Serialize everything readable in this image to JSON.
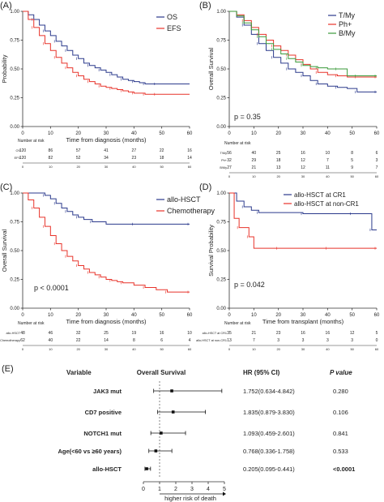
{
  "chart_data": [
    {
      "type": "line",
      "panel_label": "(A)",
      "xlabel": "Time from diagnosis (months)",
      "ylabel": "Probability",
      "xlim": [
        0,
        60
      ],
      "ylim": [
        0,
        1
      ],
      "x_ticks": [
        0,
        10,
        20,
        30,
        40,
        50,
        60
      ],
      "y_ticks": [
        "0.00",
        "0.25",
        "0.50",
        "0.75",
        "1.00"
      ],
      "legend_position": "top-right",
      "series": [
        {
          "name": "OS",
          "color": "#2b3a8c",
          "x": [
            0,
            2,
            4,
            6,
            8,
            10,
            12,
            14,
            16,
            18,
            20,
            22,
            24,
            26,
            28,
            30,
            32,
            34,
            36,
            38,
            40,
            42,
            44,
            46,
            48,
            60
          ],
          "y": [
            1.0,
            0.97,
            0.93,
            0.88,
            0.83,
            0.79,
            0.74,
            0.7,
            0.66,
            0.62,
            0.59,
            0.55,
            0.53,
            0.51,
            0.49,
            0.47,
            0.45,
            0.43,
            0.41,
            0.4,
            0.39,
            0.38,
            0.37,
            0.37,
            0.37,
            0.37
          ]
        },
        {
          "name": "EFS",
          "color": "#e8332a",
          "x": [
            0,
            2,
            4,
            6,
            8,
            10,
            12,
            14,
            16,
            18,
            20,
            22,
            24,
            26,
            28,
            30,
            32,
            34,
            36,
            38,
            40,
            42,
            44,
            46,
            48,
            60
          ],
          "y": [
            1.0,
            0.93,
            0.86,
            0.79,
            0.72,
            0.66,
            0.6,
            0.55,
            0.51,
            0.47,
            0.44,
            0.41,
            0.39,
            0.37,
            0.35,
            0.34,
            0.33,
            0.32,
            0.31,
            0.3,
            0.29,
            0.29,
            0.28,
            0.28,
            0.28,
            0.28
          ]
        }
      ],
      "risk_table": {
        "title": "Number at risk",
        "times": [
          0,
          10,
          20,
          30,
          40,
          50,
          60
        ],
        "rows": [
          {
            "label": "OS",
            "color": "#2b3a8c",
            "values": [
              120,
              86,
              57,
              41,
              27,
              22,
              16
            ]
          },
          {
            "label": "EFS",
            "color": "#e8332a",
            "values": [
              120,
              82,
              52,
              34,
              23,
              18,
              14
            ]
          }
        ]
      }
    },
    {
      "type": "line",
      "panel_label": "(B)",
      "xlabel": "",
      "ylabel": "Overall Survival",
      "xlim": [
        0,
        60
      ],
      "ylim": [
        0,
        1
      ],
      "x_ticks": [
        0,
        10,
        20,
        30,
        40,
        50,
        60
      ],
      "y_ticks": [
        "0.00",
        "0.25",
        "0.50",
        "0.75",
        "1.00"
      ],
      "annotation": "p = 0.35",
      "legend_position": "top-right",
      "series": [
        {
          "name": "T/My",
          "color": "#2b3a8c",
          "x": [
            0,
            3,
            6,
            9,
            12,
            15,
            18,
            21,
            24,
            27,
            30,
            33,
            36,
            40,
            44,
            48,
            52,
            56,
            60
          ],
          "y": [
            1.0,
            0.95,
            0.88,
            0.8,
            0.72,
            0.66,
            0.6,
            0.55,
            0.5,
            0.47,
            0.44,
            0.4,
            0.37,
            0.35,
            0.34,
            0.33,
            0.3,
            0.3,
            0.3
          ]
        },
        {
          "name": "Ph+",
          "color": "#e8332a",
          "x": [
            0,
            3,
            6,
            9,
            12,
            15,
            18,
            21,
            24,
            27,
            30,
            33,
            36,
            40,
            44,
            48,
            52,
            56,
            60
          ],
          "y": [
            1.0,
            0.97,
            0.92,
            0.86,
            0.8,
            0.75,
            0.7,
            0.66,
            0.62,
            0.58,
            0.54,
            0.5,
            0.47,
            0.45,
            0.44,
            0.43,
            0.43,
            0.43,
            0.43
          ]
        },
        {
          "name": "B/My",
          "color": "#3a9a3a",
          "x": [
            0,
            3,
            6,
            9,
            12,
            15,
            18,
            21,
            24,
            27,
            30,
            33,
            36,
            40,
            44,
            48,
            52,
            56,
            60
          ],
          "y": [
            1.0,
            0.96,
            0.9,
            0.84,
            0.78,
            0.72,
            0.67,
            0.63,
            0.59,
            0.56,
            0.53,
            0.52,
            0.51,
            0.5,
            0.5,
            0.44,
            0.44,
            0.44,
            0.44
          ]
        }
      ],
      "risk_table": {
        "title": "Number at risk",
        "times": [
          0,
          10,
          20,
          30,
          40,
          50,
          60
        ],
        "rows": [
          {
            "label": "T/My",
            "color": "#2b3a8c",
            "values": [
              56,
              40,
              25,
              16,
              10,
              8,
              6
            ]
          },
          {
            "label": "Ph+",
            "color": "#e8332a",
            "values": [
              32,
              29,
              18,
              12,
              7,
              5,
              3
            ]
          },
          {
            "label": "B/My",
            "color": "#3a9a3a",
            "values": [
              27,
              21,
              13,
              12,
              11,
              9,
              7
            ]
          }
        ]
      }
    },
    {
      "type": "line",
      "panel_label": "(C)",
      "xlabel": "Time from diagnosis (months)",
      "ylabel": "Overall Survival",
      "xlim": [
        0,
        60
      ],
      "ylim": [
        0,
        1
      ],
      "x_ticks": [
        0,
        10,
        20,
        30,
        40,
        50,
        60
      ],
      "y_ticks": [
        "0.00",
        "0.25",
        "0.50",
        "0.75",
        "1.00"
      ],
      "annotation": "p < 0.0001",
      "legend_position": "top-right",
      "series": [
        {
          "name": "allo-HSCT",
          "color": "#2b3a8c",
          "x": [
            0,
            5,
            8,
            10,
            12,
            14,
            16,
            18,
            20,
            22,
            25,
            30,
            40,
            50,
            60
          ],
          "y": [
            1.0,
            1.0,
            0.98,
            0.95,
            0.91,
            0.87,
            0.84,
            0.81,
            0.79,
            0.77,
            0.75,
            0.73,
            0.73,
            0.73,
            0.73
          ]
        },
        {
          "name": "Chemotherapy",
          "color": "#e8332a",
          "x": [
            0,
            2,
            4,
            6,
            8,
            10,
            12,
            14,
            16,
            18,
            20,
            22,
            24,
            26,
            28,
            30,
            32,
            34,
            36,
            40,
            44,
            48,
            52,
            56,
            60
          ],
          "y": [
            1.0,
            0.94,
            0.87,
            0.79,
            0.71,
            0.63,
            0.56,
            0.5,
            0.45,
            0.41,
            0.37,
            0.34,
            0.31,
            0.29,
            0.27,
            0.25,
            0.24,
            0.23,
            0.22,
            0.2,
            0.18,
            0.16,
            0.14,
            0.14,
            0.14
          ]
        }
      ],
      "risk_table": {
        "title": "Number at risk",
        "times": [
          0,
          10,
          20,
          30,
          40,
          50,
          60
        ],
        "rows": [
          {
            "label": "allo-HSCT",
            "color": "#2b3a8c",
            "values": [
              48,
              46,
              32,
              25,
              19,
              16,
              10
            ]
          },
          {
            "label": "Chemotherapy",
            "color": "#e8332a",
            "values": [
              62,
              40,
              22,
              14,
              8,
              6,
              4
            ]
          }
        ]
      }
    },
    {
      "type": "line",
      "panel_label": "(D)",
      "xlabel": "Time from transplant (months)",
      "ylabel": "Survival Probability",
      "xlim": [
        0,
        60
      ],
      "ylim": [
        0,
        1
      ],
      "x_ticks": [
        0,
        10,
        20,
        30,
        40,
        50,
        60
      ],
      "y_ticks": [
        "0.00",
        "0.25",
        "0.50",
        "0.75",
        "1.00"
      ],
      "annotation": "p = 0.042",
      "legend_position": "top-right",
      "series": [
        {
          "name": "allo-HSCT at CR1",
          "color": "#2b3a8c",
          "x": [
            0,
            3,
            6,
            9,
            12,
            20,
            30,
            40,
            50,
            55,
            58,
            60
          ],
          "y": [
            1.0,
            0.93,
            0.88,
            0.85,
            0.83,
            0.83,
            0.82,
            0.82,
            0.82,
            0.82,
            0.68,
            0.68
          ]
        },
        {
          "name": "allo-HSCT at non-CR1",
          "color": "#e8332a",
          "x": [
            0,
            2,
            4,
            6,
            8,
            10,
            20,
            30,
            40,
            50,
            60
          ],
          "y": [
            1.0,
            0.78,
            0.7,
            0.7,
            0.62,
            0.52,
            0.52,
            0.52,
            0.52,
            0.52,
            0.52
          ]
        }
      ],
      "risk_table": {
        "title": "Number at risk",
        "times": [
          0,
          10,
          20,
          30,
          40,
          50,
          60
        ],
        "rows": [
          {
            "label": "allo-HSCT at CR1",
            "color": "#2b3a8c",
            "values": [
              35,
              21,
              23,
              16,
              16,
              12,
              5
            ]
          },
          {
            "label": "allo-HSCT at non-CR1",
            "color": "#e8332a",
            "values": [
              13,
              7,
              3,
              3,
              3,
              3,
              0
            ]
          }
        ]
      }
    },
    {
      "type": "forest",
      "panel_label": "(E)",
      "headers": {
        "variable": "Variable",
        "plot": "Overall Survival",
        "hr": "HR (95% CI)",
        "p": "P value"
      },
      "xlim": [
        0,
        5
      ],
      "x_ticks": [
        0,
        1,
        2,
        3,
        4,
        5
      ],
      "reference_line": 1,
      "arrow_label": "higher risk of death",
      "rows": [
        {
          "variable": "JAK3 mut",
          "hr": 1.752,
          "lo": 0.634,
          "hi": 4.842,
          "hr_text": "1.752(0.634-4.842)",
          "p": "0.280"
        },
        {
          "variable": "CD7 positive",
          "hr": 1.835,
          "lo": 0.879,
          "hi": 3.83,
          "hr_text": "1.835(0.879-3.830)",
          "p": "0.106"
        },
        {
          "variable": "NOTCH1 mut",
          "hr": 1.093,
          "lo": 0.459,
          "hi": 2.601,
          "hr_text": "1.093(0.459-2.601)",
          "p": "0.841"
        },
        {
          "variable": "Age(<60 vs ≥60 years)",
          "hr": 0.768,
          "lo": 0.336,
          "hi": 1.758,
          "hr_text": "0.768(0.336-1.758)",
          "p": "0.533"
        },
        {
          "variable": "allo-HSCT",
          "hr": 0.205,
          "lo": 0.095,
          "hi": 0.441,
          "hr_text": "0.205(0.095-0.441)",
          "p": "<0.0001"
        }
      ]
    }
  ]
}
